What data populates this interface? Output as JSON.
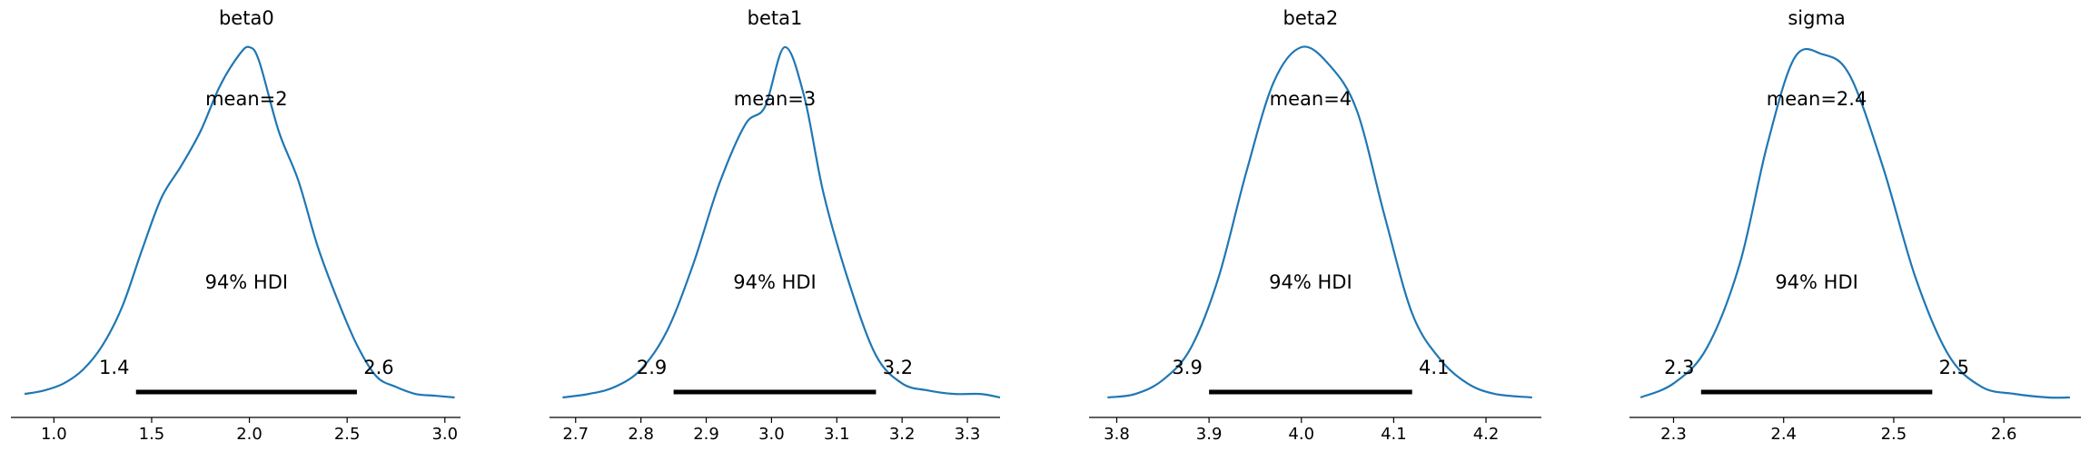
{
  "colors": {
    "kde": "#1f77b4",
    "hdi": "#000000"
  },
  "chart_data": [
    {
      "type": "area",
      "title": "beta0",
      "mean_label": "mean=2",
      "hdi_label": "94% HDI",
      "hdi": [
        1.42,
        2.55
      ],
      "hdi_low_label": "1.4",
      "hdi_high_label": "2.6",
      "xlim": [
        0.78,
        3.08
      ],
      "xticks": [
        1.0,
        1.5,
        2.0,
        2.5,
        3.0
      ],
      "xtick_labels": [
        "1.0",
        "1.5",
        "2.0",
        "2.5",
        "3.0"
      ],
      "density": {
        "x": [
          0.85,
          0.95,
          1.05,
          1.15,
          1.25,
          1.35,
          1.45,
          1.55,
          1.65,
          1.75,
          1.85,
          1.95,
          2.0,
          2.05,
          2.15,
          2.25,
          2.35,
          2.45,
          2.55,
          2.65,
          2.75,
          2.85,
          2.95,
          3.05
        ],
        "y": [
          0.01,
          0.02,
          0.04,
          0.08,
          0.15,
          0.26,
          0.42,
          0.57,
          0.66,
          0.76,
          0.89,
          0.98,
          1.0,
          0.96,
          0.76,
          0.62,
          0.43,
          0.28,
          0.15,
          0.06,
          0.03,
          0.01,
          0.005,
          0.0
        ]
      }
    },
    {
      "type": "area",
      "title": "beta1",
      "mean_label": "mean=3",
      "hdi_label": "94% HDI",
      "hdi": [
        2.85,
        3.16
      ],
      "hdi_low_label": "2.9",
      "hdi_high_label": "3.2",
      "xlim": [
        2.66,
        3.35
      ],
      "xticks": [
        2.7,
        2.8,
        2.9,
        3.0,
        3.1,
        3.2,
        3.3
      ],
      "xtick_labels": [
        "2.7",
        "2.8",
        "2.9",
        "3.0",
        "3.1",
        "3.2",
        "3.3"
      ],
      "density": {
        "x": [
          2.68,
          2.72,
          2.76,
          2.8,
          2.84,
          2.88,
          2.92,
          2.96,
          2.99,
          3.02,
          3.05,
          3.08,
          3.12,
          3.16,
          3.2,
          3.24,
          3.28,
          3.32,
          3.35
        ],
        "y": [
          0.0,
          0.01,
          0.03,
          0.08,
          0.19,
          0.38,
          0.61,
          0.78,
          0.83,
          1.0,
          0.86,
          0.58,
          0.32,
          0.12,
          0.04,
          0.02,
          0.01,
          0.01,
          0.0
        ]
      }
    },
    {
      "type": "area",
      "title": "beta2",
      "mean_label": "mean=4",
      "hdi_label": "94% HDI",
      "hdi": [
        3.9,
        4.12
      ],
      "hdi_low_label": "3.9",
      "hdi_high_label": "4.1",
      "xlim": [
        3.77,
        4.26
      ],
      "xticks": [
        3.8,
        3.9,
        4.0,
        4.1,
        4.2
      ],
      "xtick_labels": [
        "3.8",
        "3.9",
        "4.0",
        "4.1",
        "4.2"
      ],
      "density": {
        "x": [
          3.79,
          3.82,
          3.85,
          3.88,
          3.91,
          3.94,
          3.97,
          4.0,
          4.03,
          4.06,
          4.09,
          4.12,
          4.15,
          4.18,
          4.21,
          4.25
        ],
        "y": [
          0.0,
          0.01,
          0.05,
          0.14,
          0.34,
          0.64,
          0.9,
          1.0,
          0.95,
          0.82,
          0.52,
          0.24,
          0.11,
          0.04,
          0.01,
          0.0
        ]
      }
    },
    {
      "type": "area",
      "title": "sigma",
      "mean_label": "mean=2.4",
      "hdi_label": "94% HDI",
      "hdi": [
        2.325,
        2.535
      ],
      "hdi_low_label": "2.3",
      "hdi_high_label": "2.5",
      "xlim": [
        2.26,
        2.67
      ],
      "xticks": [
        2.3,
        2.4,
        2.5,
        2.6
      ],
      "xtick_labels": [
        "2.3",
        "2.4",
        "2.5",
        "2.6"
      ],
      "density": {
        "x": [
          2.27,
          2.3,
          2.33,
          2.36,
          2.385,
          2.41,
          2.435,
          2.46,
          2.49,
          2.52,
          2.55,
          2.58,
          2.61,
          2.64,
          2.66
        ],
        "y": [
          0.0,
          0.04,
          0.14,
          0.38,
          0.72,
          0.97,
          0.98,
          0.92,
          0.66,
          0.34,
          0.12,
          0.03,
          0.01,
          0.0,
          0.0
        ]
      }
    }
  ]
}
